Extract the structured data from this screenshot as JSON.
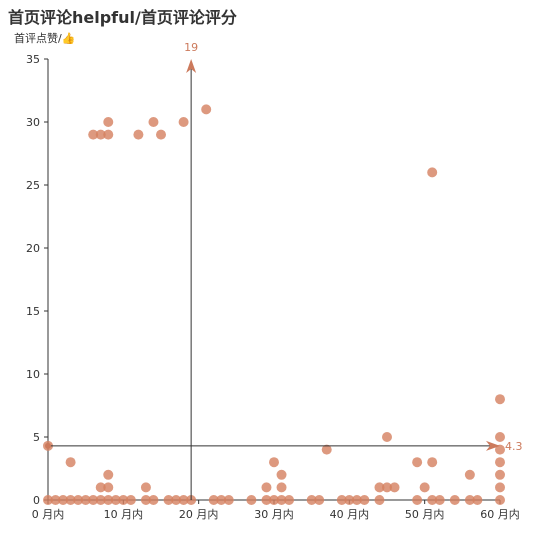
{
  "chart_data": {
    "type": "scatter",
    "title": "首页评论helpful/首页评论评分",
    "ylabel": "首评点赞/👍",
    "xlim": [
      0,
      60
    ],
    "ylim": [
      0,
      35
    ],
    "x_ticks": [
      "0 月内",
      "10 月内",
      "20 月内",
      "30 月内",
      "40 月内",
      "50 月内",
      "60 月内"
    ],
    "y_ticks": [
      "0",
      "5",
      "10",
      "15",
      "20",
      "25",
      "30",
      "35"
    ],
    "grid": false,
    "series": [
      {
        "points": [
          [
            0,
            4.3
          ],
          [
            0,
            0
          ],
          [
            1,
            0
          ],
          [
            2,
            0
          ],
          [
            3,
            0
          ],
          [
            3,
            3
          ],
          [
            4,
            0
          ],
          [
            5,
            0
          ],
          [
            6,
            0
          ],
          [
            7,
            0
          ],
          [
            7,
            1
          ],
          [
            8,
            0
          ],
          [
            8,
            1
          ],
          [
            8,
            2
          ],
          [
            9,
            0
          ],
          [
            6,
            29
          ],
          [
            7,
            29
          ],
          [
            8,
            29
          ],
          [
            8,
            30
          ],
          [
            10,
            0
          ],
          [
            11,
            0
          ],
          [
            12,
            29
          ],
          [
            13,
            1
          ],
          [
            13,
            0
          ],
          [
            14,
            0
          ],
          [
            14,
            30
          ],
          [
            15,
            29
          ],
          [
            16,
            0
          ],
          [
            17,
            0
          ],
          [
            18,
            0
          ],
          [
            18,
            30
          ],
          [
            19,
            0
          ],
          [
            21,
            31
          ],
          [
            22,
            0
          ],
          [
            23,
            0
          ],
          [
            24,
            0
          ],
          [
            27,
            0
          ],
          [
            29,
            1
          ],
          [
            29,
            0
          ],
          [
            30,
            0
          ],
          [
            30,
            3
          ],
          [
            31,
            0
          ],
          [
            31,
            1
          ],
          [
            31,
            2
          ],
          [
            32,
            0
          ],
          [
            35,
            0
          ],
          [
            36,
            0
          ],
          [
            37,
            4
          ],
          [
            39,
            0
          ],
          [
            40,
            0
          ],
          [
            41,
            0
          ],
          [
            42,
            0
          ],
          [
            44,
            0
          ],
          [
            44,
            1
          ],
          [
            45,
            1
          ],
          [
            45,
            5
          ],
          [
            46,
            1
          ],
          [
            49,
            0
          ],
          [
            49,
            3
          ],
          [
            50,
            1
          ],
          [
            51,
            0
          ],
          [
            51,
            3
          ],
          [
            51,
            26
          ],
          [
            52,
            0
          ],
          [
            54,
            0
          ],
          [
            56,
            0
          ],
          [
            56,
            2
          ],
          [
            57,
            0
          ],
          [
            60,
            0
          ],
          [
            60,
            1
          ],
          [
            60,
            2
          ],
          [
            60,
            3
          ],
          [
            60,
            4
          ],
          [
            60,
            5
          ],
          [
            60,
            8
          ]
        ]
      }
    ],
    "mark_lines": [
      {
        "axis": "x",
        "value": 19,
        "label": "19"
      },
      {
        "axis": "y",
        "value": 4.3,
        "label": "4.3"
      }
    ],
    "colors": {
      "point": "#d4805f",
      "axis": "#333333",
      "markline": "#cc7a5c",
      "title": "#333333"
    }
  }
}
